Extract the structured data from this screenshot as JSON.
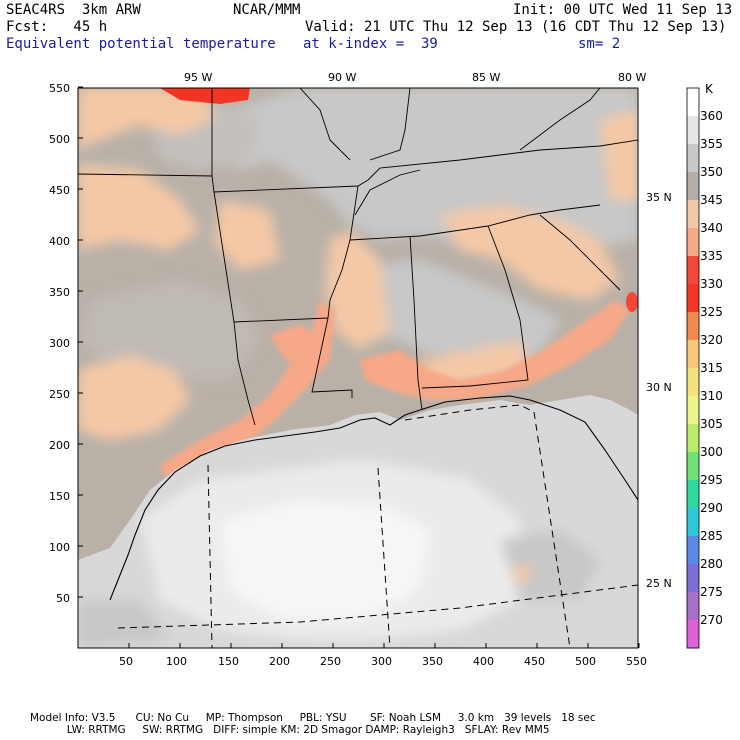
{
  "header": {
    "model": "SEAC4RS  3km ARW",
    "org": "NCAR/MMM",
    "init": "Init: 00 UTC Wed 11 Sep 13",
    "fcst": "Fcst:   45 h",
    "valid": "Valid: 21 UTC Thu 12 Sep 13 (16 CDT Thu 12 Sep 13)",
    "field": "Equivalent potential temperature",
    "level": "at k-index =  39",
    "smooth": "sm= 2"
  },
  "map": {
    "longitude_labels": [
      "95 W",
      "90 W",
      "85 W",
      "80 W"
    ],
    "latitude_labels": [
      "35 N",
      "30 N",
      "25 N"
    ],
    "x_ticks": [
      "50",
      "100",
      "150",
      "200",
      "250",
      "300",
      "350",
      "400",
      "450",
      "500",
      "550"
    ],
    "y_ticks": [
      "550",
      "500",
      "450",
      "400",
      "350",
      "300",
      "250",
      "200",
      "150",
      "100",
      "50"
    ]
  },
  "colorbar": {
    "unit": "K",
    "levels": [
      "360",
      "355",
      "350",
      "345",
      "340",
      "335",
      "330",
      "325",
      "320",
      "315",
      "310",
      "305",
      "300",
      "295",
      "290",
      "285",
      "280",
      "275",
      "270"
    ],
    "colors": [
      "#ffffff",
      "#e6e6e6",
      "#c8c8c8",
      "#b4aea6",
      "#f4c8a6",
      "#f7a888",
      "#f5463a",
      "#f23524",
      "#f58a50",
      "#f8c87a",
      "#f6e27a",
      "#ecf58a",
      "#b8ec6a",
      "#6ee274",
      "#2ed8a0",
      "#2cc8d8",
      "#5a8ae6",
      "#7a6ed8",
      "#a870c8",
      "#e060d8"
    ]
  },
  "footer": {
    "line1": "Model Info: V3.5      CU: No Cu     MP: Thompson     PBL: YSU       SF: Noah LSM     3.0 km   39 levels   18 sec",
    "line2": "           LW: RRTMG     SW: RRTMG   DIFF: simple KM: 2D Smagor DAMP: Rayleigh3   SFLAY: Rev MM5"
  }
}
